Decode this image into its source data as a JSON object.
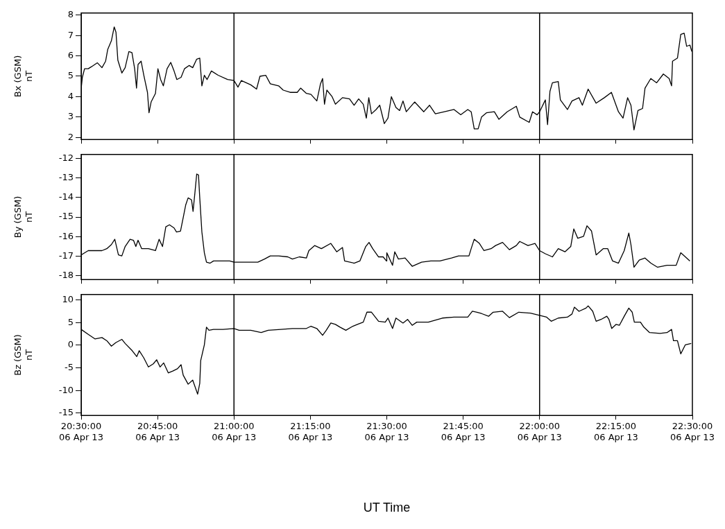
{
  "chart_data": [
    {
      "type": "line",
      "ylabel": "Bx (GSM)\nnT",
      "xlim": [
        "--04-06T20:30",
        "--04-06T22:30"
      ],
      "xticks": [
        {
          "value": "--04-06T20:30",
          "label": null
        },
        {
          "value": "--04-06T20:45",
          "label": null
        },
        {
          "value": "--04-06T21:00",
          "label": null
        },
        {
          "value": "--04-06T21:15",
          "label": null
        },
        {
          "value": "--04-06T21:30",
          "label": null
        },
        {
          "value": "--04-06T21:45",
          "label": null
        },
        {
          "value": "--04-06T22:00",
          "label": null
        },
        {
          "value": "--04-06T22:15",
          "label": null
        },
        {
          "value": "--04-06T22:30",
          "label": null
        }
      ],
      "ylim": [
        1.9,
        8.1
      ],
      "yticks": [
        2,
        3,
        4,
        5,
        6,
        7,
        8
      ],
      "tick_labels": "y",
      "marker": "none",
      "ref_lines": [
        {
          "axis": "x",
          "value": "--04-06T21:00",
          "color": "#000000"
        },
        {
          "axis": "x",
          "value": "--04-06T22:00",
          "color": "#000000"
        }
      ],
      "series": [
        {
          "color": "#000000",
          "x": [
            "--04-06T20:30:00",
            "--04-06T20:30:14",
            "--04-06T20:30:40",
            "--04-06T20:31:23",
            "--04-06T20:32:02",
            "--04-06T20:33:11",
            "--04-06T20:34:05",
            "--04-06T20:34:48",
            "--04-06T20:35:13",
            "--04-06T20:35:56",
            "--04-06T20:36:29",
            "--04-06T20:36:50",
            "--04-06T20:37:12",
            "--04-06T20:37:59",
            "--04-06T20:38:38",
            "--04-06T20:39:22",
            "--04-06T20:39:58",
            "--04-06T20:40:30",
            "--04-06T20:40:52",
            "--04-06T20:41:10",
            "--04-06T20:41:46",
            "--04-06T20:42:18",
            "--04-06T20:43:01",
            "--04-06T20:43:19",
            "--04-06T20:43:44",
            "--04-06T20:44:35",
            "--04-06T20:45:04",
            "--04-06T20:45:36",
            "--04-06T20:46:08",
            "--04-06T20:46:52",
            "--04-06T20:47:35",
            "--04-06T20:48:14",
            "--04-06T20:48:47",
            "--04-06T20:49:37",
            "--04-06T20:50:17",
            "--04-06T20:51:11",
            "--04-06T20:51:54",
            "--04-06T20:52:41",
            "--04-06T20:53:17",
            "--04-06T20:53:42",
            "--04-06T20:54:11",
            "--04-06T20:54:43",
            "--04-06T20:55:34",
            "--04-06T20:56:53",
            "--04-06T20:58:44",
            "--04-06T21:00:00",
            "--04-06T21:00:47",
            "--04-06T21:01:26",
            "--04-06T21:03:18",
            "--04-06T21:04:26",
            "--04-06T21:05:06",
            "--04-06T21:06:14",
            "--04-06T21:07:08",
            "--04-06T21:08:46",
            "--04-06T21:09:40",
            "--04-06T21:11:02",
            "--04-06T21:12:25",
            "--04-06T21:13:05",
            "--04-06T21:14:13",
            "--04-06T21:15:07",
            "--04-06T21:16:16",
            "--04-06T21:16:59",
            "--04-06T21:17:24",
            "--04-06T21:17:46",
            "--04-06T21:18:14",
            "--04-06T21:19:16",
            "--04-06T21:19:55",
            "--04-06T21:21:18",
            "--04-06T21:22:41",
            "--04-06T21:23:35",
            "--04-06T21:24:29",
            "--04-06T21:25:23",
            "--04-06T21:25:59",
            "--04-06T21:26:28",
            "--04-06T21:27:00",
            "--04-06T21:27:54",
            "--04-06T21:28:37",
            "--04-06T21:29:31",
            "--04-06T21:30:14",
            "--04-06T21:30:54",
            "--04-06T21:31:48",
            "--04-06T21:32:31",
            "--04-06T21:33:11",
            "--04-06T21:33:50",
            "--04-06T21:35:28",
            "--04-06T21:37:16",
            "--04-06T21:38:24",
            "--04-06T21:39:32",
            "--04-06T21:41:20",
            "--04-06T21:43:12",
            "--04-06T21:44:31",
            "--04-06T21:45:54",
            "--04-06T21:46:34",
            "--04-06T21:47:10",
            "--04-06T21:47:56",
            "--04-06T21:48:36",
            "--04-06T21:49:34",
            "--04-06T21:51:07",
            "--04-06T21:52:01",
            "--04-06T21:53:38",
            "--04-06T21:55:26",
            "--04-06T21:56:06",
            "--04-06T21:57:58",
            "--04-06T21:58:37",
            "--04-06T21:59:31",
            "--04-06T22:00:00",
            "--04-06T22:01:08",
            "--04-06T22:01:34",
            "--04-06T22:02:02",
            "--04-06T22:02:31",
            "--04-06T22:03:40",
            "--04-06T22:04:05",
            "--04-06T22:05:28",
            "--04-06T22:06:22",
            "--04-06T22:07:44",
            "--04-06T22:08:24",
            "--04-06T22:09:32",
            "--04-06T22:11:06",
            "--04-06T22:12:43",
            "--04-06T22:14:06",
            "--04-06T22:15:29",
            "--04-06T22:16:23",
            "--04-06T22:17:17",
            "--04-06T22:17:56",
            "--04-06T22:18:32",
            "--04-06T22:19:19",
            "--04-06T22:20:13",
            "--04-06T22:20:42",
            "--04-06T22:21:50",
            "--04-06T22:22:59",
            "--04-06T22:24:18",
            "--04-06T22:25:26",
            "--04-06T22:25:55",
            "--04-06T22:26:06",
            "--04-06T22:27:04",
            "--04-06T22:27:43",
            "--04-06T22:28:23",
            "--04-06T22:28:52",
            "--04-06T22:29:31",
            "--04-06T22:29:53"
          ],
          "values": [
            4.4,
            4.95,
            5.37,
            5.37,
            5.47,
            5.66,
            5.42,
            5.74,
            6.32,
            6.74,
            7.42,
            7.16,
            5.79,
            5.16,
            5.42,
            6.21,
            6.16,
            5.37,
            4.42,
            5.58,
            5.74,
            5.05,
            4.21,
            3.21,
            3.74,
            4.16,
            5.37,
            4.84,
            4.53,
            5.37,
            5.68,
            5.26,
            4.84,
            4.95,
            5.37,
            5.53,
            5.42,
            5.84,
            5.89,
            4.53,
            5.05,
            4.84,
            5.26,
            5.05,
            4.84,
            4.79,
            4.47,
            4.79,
            4.58,
            4.37,
            5.0,
            5.05,
            4.63,
            4.53,
            4.32,
            4.21,
            4.21,
            4.42,
            4.16,
            4.11,
            3.79,
            4.63,
            4.89,
            3.63,
            4.32,
            4.0,
            3.63,
            3.95,
            3.89,
            3.58,
            3.89,
            3.63,
            2.95,
            3.95,
            3.16,
            3.37,
            3.58,
            2.68,
            2.95,
            4.0,
            3.47,
            3.32,
            3.79,
            3.26,
            3.74,
            3.26,
            3.58,
            3.16,
            3.26,
            3.37,
            3.11,
            3.37,
            3.26,
            2.42,
            2.42,
            3.0,
            3.21,
            3.26,
            2.89,
            3.26,
            3.53,
            3.0,
            2.74,
            3.26,
            3.11,
            3.26,
            3.84,
            2.63,
            4.26,
            4.68,
            4.74,
            3.84,
            3.37,
            3.79,
            3.95,
            3.58,
            4.37,
            3.68,
            3.95,
            4.21,
            3.26,
            2.95,
            3.95,
            3.58,
            2.37,
            3.32,
            3.42,
            4.42,
            4.89,
            4.68,
            5.11,
            4.89,
            4.53,
            5.74,
            5.89,
            7.05,
            7.11,
            6.47,
            6.53,
            6.21
          ]
        }
      ]
    },
    {
      "type": "line",
      "ylabel": "By (GSM)\nnT",
      "xlim": [
        "--04-06T20:30",
        "--04-06T22:30"
      ],
      "xticks": [
        {
          "value": "--04-06T20:30",
          "label": null
        },
        {
          "value": "--04-06T20:45",
          "label": null
        },
        {
          "value": "--04-06T21:00",
          "label": null
        },
        {
          "value": "--04-06T21:15",
          "label": null
        },
        {
          "value": "--04-06T21:30",
          "label": null
        },
        {
          "value": "--04-06T21:45",
          "label": null
        },
        {
          "value": "--04-06T22:00",
          "label": null
        },
        {
          "value": "--04-06T22:15",
          "label": null
        },
        {
          "value": "--04-06T22:30",
          "label": null
        }
      ],
      "ylim": [
        -18.2,
        -11.8
      ],
      "yticks": [
        -18,
        -17,
        -16,
        -15,
        -14,
        -13,
        -12
      ],
      "tick_labels": "y",
      "marker": "none",
      "ref_lines": [
        {
          "axis": "x",
          "value": "--04-06T21:00",
          "color": "#000000"
        },
        {
          "axis": "x",
          "value": "--04-06T22:00",
          "color": "#000000"
        }
      ],
      "series": [
        {
          "color": "#000000",
          "x": [
            "--04-06T20:30:00",
            "--04-06T20:31:23",
            "--04-06T20:32:42",
            "--04-06T20:34:05",
            "--04-06T20:35:02",
            "--04-06T20:35:56",
            "--04-06T20:36:36",
            "--04-06T20:37:19",
            "--04-06T20:37:59",
            "--04-06T20:38:38",
            "--04-06T20:39:36",
            "--04-06T20:40:16",
            "--04-06T20:40:44",
            "--04-06T20:41:10",
            "--04-06T20:41:53",
            "--04-06T20:43:12",
            "--04-06T20:44:35",
            "--04-06T20:45:18",
            "--04-06T20:45:58",
            "--04-06T20:46:37",
            "--04-06T20:47:20",
            "--04-06T20:48:14",
            "--04-06T20:48:43",
            "--04-06T20:49:30",
            "--04-06T20:50:02",
            "--04-06T20:50:31",
            "--04-06T20:51:00",
            "--04-06T20:51:40",
            "--04-06T20:51:58",
            "--04-06T20:52:19",
            "--04-06T20:52:41",
            "--04-06T20:53:02",
            "--04-06T20:53:17",
            "--04-06T20:53:42",
            "--04-06T20:54:11",
            "--04-06T20:54:36",
            "--04-06T20:55:19",
            "--04-06T20:55:59",
            "--04-06T20:57:50",
            "--04-06T20:59:10",
            "--04-06T21:00:00",
            "--04-06T21:01:26",
            "--04-06T21:03:18",
            "--04-06T21:04:41",
            "--04-06T21:06:00",
            "--04-06T21:07:08",
            "--04-06T21:08:46",
            "--04-06T21:10:34",
            "--04-06T21:11:28",
            "--04-06T21:12:50",
            "--04-06T21:14:13",
            "--04-06T21:14:42",
            "--04-06T21:15:50",
            "--04-06T21:17:10",
            "--04-06T21:19:01",
            "--04-06T21:20:10",
            "--04-06T21:21:18",
            "--04-06T21:21:43",
            "--04-06T21:23:35",
            "--04-06T21:24:43",
            "--04-06T21:25:52",
            "--04-06T21:26:31",
            "--04-06T21:27:14",
            "--04-06T21:28:23",
            "--04-06T21:29:17",
            "--04-06T21:29:56",
            "--04-06T21:30:00",
            "--04-06T21:31:08",
            "--04-06T21:31:34",
            "--04-06T21:32:17",
            "--04-06T21:33:36",
            "--04-06T21:34:59",
            "--04-06T21:36:50",
            "--04-06T21:38:38",
            "--04-06T21:40:26",
            "--04-06T21:42:43",
            "--04-06T21:44:06",
            "--04-06T21:46:08",
            "--04-06T21:46:34",
            "--04-06T21:47:10",
            "--04-06T21:48:11",
            "--04-06T21:49:05",
            "--04-06T21:50:28",
            "--04-06T21:51:22",
            "--04-06T21:52:44",
            "--04-06T21:54:04",
            "--04-06T21:55:26",
            "--04-06T21:56:06",
            "--04-06T21:57:43",
            "--04-06T21:59:06",
            "--04-06T22:00:00",
            "--04-06T22:01:08",
            "--04-06T22:02:31",
            "--04-06T22:03:40",
            "--04-06T22:04:59",
            "--04-06T22:06:07",
            "--04-06T22:06:43",
            "--04-06T22:07:30",
            "--04-06T22:08:38",
            "--04-06T22:09:18",
            "--04-06T22:10:12",
            "--04-06T22:11:06",
            "--04-06T22:12:29",
            "--04-06T22:13:23",
            "--04-06T22:14:20",
            "--04-06T22:15:29",
            "--04-06T22:16:37",
            "--04-06T22:17:31",
            "--04-06T22:17:56",
            "--04-06T22:18:32",
            "--04-06T22:19:34",
            "--04-06T22:20:42",
            "--04-06T22:21:50",
            "--04-06T22:23:10",
            "--04-06T22:25:01",
            "--04-06T22:26:49",
            "--04-06T22:27:43",
            "--04-06T22:28:37",
            "--04-06T22:29:31"
          ],
          "values": [
            -16.94,
            -16.72,
            -16.72,
            -16.72,
            -16.62,
            -16.41,
            -16.14,
            -16.94,
            -16.99,
            -16.51,
            -16.14,
            -16.19,
            -16.51,
            -16.19,
            -16.62,
            -16.62,
            -16.72,
            -16.14,
            -16.51,
            -15.5,
            -15.4,
            -15.56,
            -15.77,
            -15.72,
            -15.03,
            -14.39,
            -14.02,
            -14.12,
            -14.71,
            -13.8,
            -12.8,
            -12.85,
            -14.02,
            -15.77,
            -16.83,
            -17.31,
            -17.36,
            -17.25,
            -17.25,
            -17.25,
            -17.31,
            -17.31,
            -17.31,
            -17.31,
            -17.15,
            -16.99,
            -16.99,
            -17.04,
            -17.15,
            -17.04,
            -17.1,
            -16.72,
            -16.46,
            -16.62,
            -16.35,
            -16.78,
            -16.56,
            -17.25,
            -17.36,
            -17.25,
            -16.51,
            -16.3,
            -16.62,
            -17.04,
            -17.04,
            -17.25,
            -16.83,
            -17.47,
            -16.78,
            -17.15,
            -17.1,
            -17.52,
            -17.31,
            -17.25,
            -17.25,
            -17.1,
            -16.99,
            -16.99,
            -16.62,
            -16.14,
            -16.35,
            -16.72,
            -16.62,
            -16.46,
            -16.3,
            -16.67,
            -16.46,
            -16.25,
            -16.46,
            -16.35,
            -16.72,
            -16.88,
            -17.04,
            -16.62,
            -16.78,
            -16.51,
            -15.61,
            -16.09,
            -15.99,
            -15.45,
            -15.72,
            -16.94,
            -16.62,
            -16.62,
            -17.25,
            -17.36,
            -16.72,
            -15.82,
            -16.41,
            -17.57,
            -17.2,
            -17.1,
            -17.36,
            -17.57,
            -17.47,
            -17.47,
            -16.83,
            -17.04,
            -17.25
          ]
        }
      ]
    },
    {
      "type": "line",
      "ylabel": "Bz (GSM)\nnT",
      "xlabel": "UT Time",
      "xlim": [
        "--04-06T20:30",
        "--04-06T22:30"
      ],
      "xticks": [
        {
          "value": "--04-06T20:30",
          "label": "20:30:00\n06 Apr 13"
        },
        {
          "value": "--04-06T20:45",
          "label": "20:45:00\n06 Apr 13"
        },
        {
          "value": "--04-06T21:00",
          "label": "21:00:00\n06 Apr 13"
        },
        {
          "value": "--04-06T21:15",
          "label": "21:15:00\n06 Apr 13"
        },
        {
          "value": "--04-06T21:30",
          "label": "21:30:00\n06 Apr 13"
        },
        {
          "value": "--04-06T21:45",
          "label": "21:45:00\n06 Apr 13"
        },
        {
          "value": "--04-06T22:00",
          "label": "22:00:00\n06 Apr 13"
        },
        {
          "value": "--04-06T22:15",
          "label": "22:15:00\n06 Apr 13"
        },
        {
          "value": "--04-06T22:30",
          "label": "22:30:00\n06 Apr 13"
        }
      ],
      "ylim": [
        -15.5,
        11.2
      ],
      "yticks": [
        -15,
        -10,
        -5,
        0,
        5,
        10
      ],
      "marker": "none",
      "ref_lines": [
        {
          "axis": "x",
          "value": "--04-06T21:00",
          "color": "#000000"
        },
        {
          "axis": "x",
          "value": "--04-06T22:00",
          "color": "#000000"
        }
      ],
      "series": [
        {
          "color": "#000000",
          "x": [
            "--04-06T20:30:00",
            "--04-06T20:31:23",
            "--04-06T20:32:42",
            "--04-06T20:34:05",
            "--04-06T20:35:02",
            "--04-06T20:35:56",
            "--04-06T20:36:50",
            "--04-06T20:37:59",
            "--04-06T20:38:38",
            "--04-06T20:40:01",
            "--04-06T20:40:55",
            "--04-06T20:41:24",
            "--04-06T20:42:18",
            "--04-06T20:43:12",
            "--04-06T20:44:10",
            "--04-06T20:44:49",
            "--04-06T20:45:29",
            "--04-06T20:46:12",
            "--04-06T20:47:06",
            "--04-06T20:48:00",
            "--04-06T20:48:54",
            "--04-06T20:49:37",
            "--04-06T20:50:02",
            "--04-06T20:51:00",
            "--04-06T20:51:54",
            "--04-06T20:52:52",
            "--04-06T20:53:17",
            "--04-06T20:53:28",
            "--04-06T20:54:11",
            "--04-06T20:54:36",
            "--04-06T20:55:05",
            "--04-06T20:55:59",
            "--04-06T20:57:50",
            "--04-06T21:00:00",
            "--04-06T21:01:01",
            "--04-06T21:03:18",
            "--04-06T21:05:20",
            "--04-06T21:06:43",
            "--04-06T21:09:11",
            "--04-06T21:11:28",
            "--04-06T21:14:13",
            "--04-06T21:15:07",
            "--04-06T21:16:16",
            "--04-06T21:17:24",
            "--04-06T21:18:07",
            "--04-06T21:19:01",
            "--04-06T21:19:55",
            "--04-06T21:20:49",
            "--04-06T21:21:58",
            "--04-06T21:23:20",
            "--04-06T21:24:14",
            "--04-06T21:25:23",
            "--04-06T21:26:06",
            "--04-06T21:27:00",
            "--04-06T21:28:23",
            "--04-06T21:29:42",
            "--04-06T21:30:14",
            "--04-06T21:31:08",
            "--04-06T21:31:48",
            "--04-06T21:33:11",
            "--04-06T21:34:05",
            "--04-06T21:34:59",
            "--04-06T21:35:53",
            "--04-06T21:38:10",
            "--04-06T21:40:55",
            "--04-06T21:43:12",
            "--04-06T21:45:54",
            "--04-06T21:46:48",
            "--04-06T21:47:42",
            "--04-06T21:48:36",
            "--04-06T21:49:59",
            "--04-06T21:50:53",
            "--04-06T21:52:44",
            "--04-06T21:54:04",
            "--04-06T21:55:55",
            "--04-06T21:58:12",
            "--04-06T22:00:00",
            "--04-06T22:01:23",
            "--04-06T22:02:17",
            "--04-06T22:03:40",
            "--04-06T22:05:28",
            "--04-06T22:06:22",
            "--04-06T22:06:50",
            "--04-06T22:07:44",
            "--04-06T22:09:07",
            "--04-06T22:09:32",
            "--04-06T22:10:26",
            "--04-06T22:11:06",
            "--04-06T22:12:04",
            "--04-06T22:13:12",
            "--04-06T22:13:37",
            "--04-06T22:14:10",
            "--04-06T22:15:00",
            "--04-06T22:15:40",
            "--04-06T22:16:37",
            "--04-06T22:17:31",
            "--04-06T22:18:11",
            "--04-06T22:18:36",
            "--04-06T22:19:48",
            "--04-06T22:20:28",
            "--04-06T22:21:36",
            "--04-06T22:23:38",
            "--04-06T22:25:01",
            "--04-06T22:25:55",
            "--04-06T22:26:17",
            "--04-06T22:27:04",
            "--04-06T22:27:43",
            "--04-06T22:28:37",
            "--04-06T22:29:46"
          ],
          "values": [
            3.5,
            2.4,
            1.4,
            1.7,
            1.0,
            -0.2,
            0.6,
            1.3,
            0.4,
            -1.2,
            -2.5,
            -1.2,
            -2.8,
            -4.8,
            -4.1,
            -3.2,
            -4.8,
            -3.9,
            -6.1,
            -5.7,
            -5.2,
            -4.3,
            -6.6,
            -8.6,
            -7.7,
            -10.8,
            -8.4,
            -3.4,
            0.1,
            4.0,
            3.3,
            3.5,
            3.5,
            3.7,
            3.3,
            3.3,
            2.8,
            3.3,
            3.5,
            3.7,
            3.7,
            4.2,
            3.7,
            2.2,
            3.3,
            4.9,
            4.6,
            4.0,
            3.3,
            4.2,
            4.6,
            5.1,
            7.3,
            7.3,
            5.3,
            5.1,
            6.0,
            3.7,
            6.0,
            4.9,
            5.7,
            4.4,
            5.1,
            5.1,
            6.0,
            6.2,
            6.2,
            7.5,
            7.3,
            7.0,
            6.4,
            7.3,
            7.5,
            6.1,
            7.3,
            7.1,
            6.6,
            6.2,
            5.3,
            6.0,
            6.2,
            6.9,
            8.4,
            7.5,
            8.2,
            8.7,
            7.5,
            5.3,
            5.7,
            6.4,
            5.7,
            3.7,
            4.6,
            4.4,
            6.4,
            8.2,
            7.3,
            5.1,
            5.1,
            4.0,
            2.8,
            2.6,
            2.8,
            3.5,
            1.0,
            1.0,
            -1.9,
            0.1,
            0.4
          ]
        }
      ]
    }
  ]
}
